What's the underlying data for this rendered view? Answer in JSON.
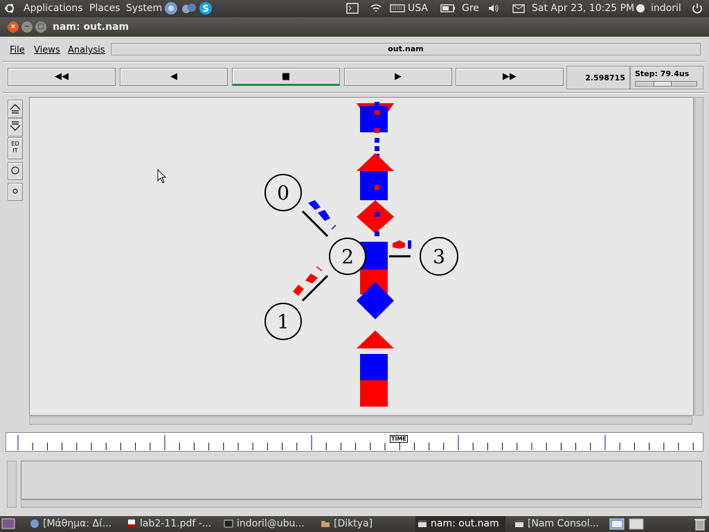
{
  "top_panel": {
    "menus": [
      "Applications",
      "Places",
      "System"
    ],
    "keyboard": "USA",
    "battery": "Gre",
    "clock": "Sat Apr 23, 10:25 PM",
    "user": "indoril"
  },
  "window": {
    "title": "nam: out.nam"
  },
  "menubar": {
    "file": "File",
    "views": "Views",
    "analysis": "Analysis",
    "filename": "out.nam"
  },
  "controls": {
    "rewind": "◀◀",
    "back": "◀",
    "stop": "■",
    "play": "▶",
    "fast_forward": "▶▶",
    "time": "2.598715",
    "step": "Step: 79.4us"
  },
  "tools": {
    "edit": "EDIT"
  },
  "nodes": [
    {
      "id": "0",
      "label": "0"
    },
    {
      "id": "1",
      "label": "1"
    },
    {
      "id": "2",
      "label": "2"
    },
    {
      "id": "3",
      "label": "3"
    }
  ],
  "timeline": {
    "marker": "TIME"
  },
  "taskbar": {
    "items": [
      {
        "label": "[Μάθημα: Δί..."
      },
      {
        "label": "lab2-11.pdf -..."
      },
      {
        "label": "indoril@ubu..."
      },
      {
        "label": "[Diktya]"
      },
      {
        "label": "nam: out.nam"
      },
      {
        "label": "[Nam Consol..."
      }
    ]
  },
  "colors": {
    "flow_red": "#ff0000",
    "flow_blue": "#0000ff",
    "canvas_bg": "#e8e8e8"
  }
}
